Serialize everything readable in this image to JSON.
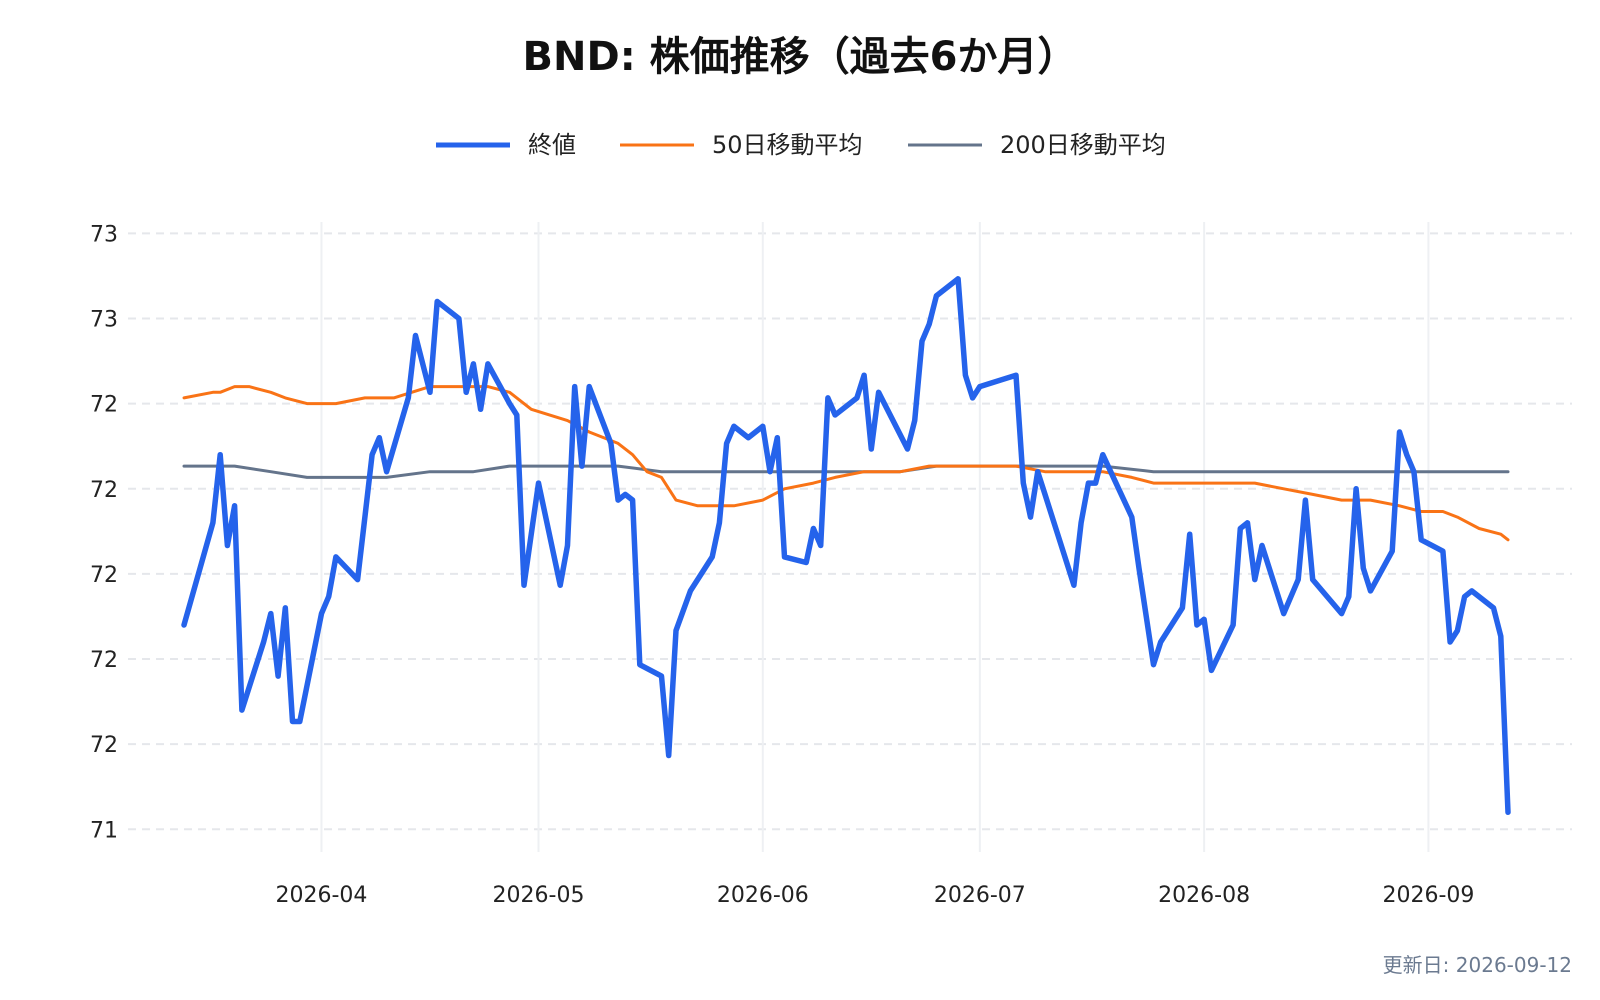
{
  "chart_data": {
    "type": "line",
    "title": "BND: 株価推移（過去6か月）",
    "xlabel": "",
    "ylabel": "",
    "legend_position": "top-center",
    "grid": true,
    "x_tick_labels": [
      "2026-04",
      "2026-05",
      "2026-06",
      "2026-07",
      "2026-08",
      "2026-09"
    ],
    "x_tick_dates": [
      "2026-04-01",
      "2026-05-01",
      "2026-06-01",
      "2026-07-01",
      "2026-08-01",
      "2026-09-01"
    ],
    "y_tick_labels": [
      "73",
      "73",
      "72",
      "72",
      "72",
      "72",
      "72",
      "71"
    ],
    "y_tick_values": [
      72.9,
      72.75,
      72.6,
      72.45,
      72.3,
      72.15,
      72.0,
      71.85
    ],
    "xlim": [
      "2026-03-13",
      "2026-09-12"
    ],
    "ylim": [
      71.81,
      72.92
    ],
    "series": [
      {
        "name": "終値",
        "color": "#2563eb",
        "points": [
          [
            "2026-03-13",
            72.21
          ],
          [
            "2026-03-17",
            72.39
          ],
          [
            "2026-03-18",
            72.51
          ],
          [
            "2026-03-19",
            72.35
          ],
          [
            "2026-03-20",
            72.42
          ],
          [
            "2026-03-21",
            72.06
          ],
          [
            "2026-03-24",
            72.18
          ],
          [
            "2026-03-25",
            72.23
          ],
          [
            "2026-03-26",
            72.12
          ],
          [
            "2026-03-27",
            72.24
          ],
          [
            "2026-03-28",
            72.04
          ],
          [
            "2026-03-29",
            72.04
          ],
          [
            "2026-04-01",
            72.23
          ],
          [
            "2026-04-02",
            72.26
          ],
          [
            "2026-04-03",
            72.33
          ],
          [
            "2026-04-06",
            72.29
          ],
          [
            "2026-04-07",
            72.4
          ],
          [
            "2026-04-08",
            72.51
          ],
          [
            "2026-04-09",
            72.54
          ],
          [
            "2026-04-10",
            72.48
          ],
          [
            "2026-04-13",
            72.61
          ],
          [
            "2026-04-14",
            72.72
          ],
          [
            "2026-04-16",
            72.62
          ],
          [
            "2026-04-17",
            72.78
          ],
          [
            "2026-04-20",
            72.75
          ],
          [
            "2026-04-21",
            72.62
          ],
          [
            "2026-04-22",
            72.67
          ],
          [
            "2026-04-23",
            72.59
          ],
          [
            "2026-04-24",
            72.67
          ],
          [
            "2026-04-27",
            72.6
          ],
          [
            "2026-04-28",
            72.58
          ],
          [
            "2026-04-29",
            72.28
          ],
          [
            "2026-05-01",
            72.46
          ],
          [
            "2026-05-04",
            72.28
          ],
          [
            "2026-05-05",
            72.35
          ],
          [
            "2026-05-06",
            72.63
          ],
          [
            "2026-05-07",
            72.49
          ],
          [
            "2026-05-08",
            72.63
          ],
          [
            "2026-05-11",
            72.53
          ],
          [
            "2026-05-12",
            72.43
          ],
          [
            "2026-05-13",
            72.44
          ],
          [
            "2026-05-14",
            72.43
          ],
          [
            "2026-05-15",
            72.14
          ],
          [
            "2026-05-18",
            72.12
          ],
          [
            "2026-05-19",
            71.98
          ],
          [
            "2026-05-20",
            72.2
          ],
          [
            "2026-05-22",
            72.27
          ],
          [
            "2026-05-25",
            72.33
          ],
          [
            "2026-05-26",
            72.39
          ],
          [
            "2026-05-27",
            72.53
          ],
          [
            "2026-05-28",
            72.56
          ],
          [
            "2026-05-30",
            72.54
          ],
          [
            "2026-06-01",
            72.56
          ],
          [
            "2026-06-02",
            72.48
          ],
          [
            "2026-06-03",
            72.54
          ],
          [
            "2026-06-04",
            72.33
          ],
          [
            "2026-06-07",
            72.32
          ],
          [
            "2026-06-08",
            72.38
          ],
          [
            "2026-06-09",
            72.35
          ],
          [
            "2026-06-10",
            72.61
          ],
          [
            "2026-06-11",
            72.58
          ],
          [
            "2026-06-14",
            72.61
          ],
          [
            "2026-06-15",
            72.65
          ],
          [
            "2026-06-16",
            72.52
          ],
          [
            "2026-06-17",
            72.62
          ],
          [
            "2026-06-21",
            72.52
          ],
          [
            "2026-06-22",
            72.57
          ],
          [
            "2026-06-23",
            72.71
          ],
          [
            "2026-06-24",
            72.74
          ],
          [
            "2026-06-25",
            72.79
          ],
          [
            "2026-06-28",
            72.82
          ],
          [
            "2026-06-29",
            72.65
          ],
          [
            "2026-06-30",
            72.61
          ],
          [
            "2026-07-01",
            72.63
          ],
          [
            "2026-07-06",
            72.65
          ],
          [
            "2026-07-07",
            72.46
          ],
          [
            "2026-07-08",
            72.4
          ],
          [
            "2026-07-09",
            72.48
          ],
          [
            "2026-07-10",
            72.44
          ],
          [
            "2026-07-14",
            72.28
          ],
          [
            "2026-07-15",
            72.39
          ],
          [
            "2026-07-16",
            72.46
          ],
          [
            "2026-07-17",
            72.46
          ],
          [
            "2026-07-18",
            72.51
          ],
          [
            "2026-07-22",
            72.4
          ],
          [
            "2026-07-23",
            72.31
          ],
          [
            "2026-07-25",
            72.14
          ],
          [
            "2026-07-26",
            72.18
          ],
          [
            "2026-07-29",
            72.24
          ],
          [
            "2026-07-30",
            72.37
          ],
          [
            "2026-07-31",
            72.21
          ],
          [
            "2026-08-01",
            72.22
          ],
          [
            "2026-08-02",
            72.13
          ],
          [
            "2026-08-05",
            72.21
          ],
          [
            "2026-08-06",
            72.38
          ],
          [
            "2026-08-07",
            72.39
          ],
          [
            "2026-08-08",
            72.29
          ],
          [
            "2026-08-09",
            72.35
          ],
          [
            "2026-08-12",
            72.23
          ],
          [
            "2026-08-14",
            72.29
          ],
          [
            "2026-08-15",
            72.43
          ],
          [
            "2026-08-16",
            72.29
          ],
          [
            "2026-08-20",
            72.23
          ],
          [
            "2026-08-21",
            72.26
          ],
          [
            "2026-08-22",
            72.45
          ],
          [
            "2026-08-23",
            72.31
          ],
          [
            "2026-08-24",
            72.27
          ],
          [
            "2026-08-27",
            72.34
          ],
          [
            "2026-08-28",
            72.55
          ],
          [
            "2026-08-29",
            72.51
          ],
          [
            "2026-08-30",
            72.48
          ],
          [
            "2026-08-31",
            72.36
          ],
          [
            "2026-09-03",
            72.34
          ],
          [
            "2026-09-04",
            72.18
          ],
          [
            "2026-09-05",
            72.2
          ],
          [
            "2026-09-06",
            72.26
          ],
          [
            "2026-09-07",
            72.27
          ],
          [
            "2026-09-10",
            72.24
          ],
          [
            "2026-09-11",
            72.19
          ],
          [
            "2026-09-12",
            71.88
          ]
        ]
      },
      {
        "name": "50日移動平均",
        "color": "#f97316",
        "points": [
          [
            "2026-03-13",
            72.61
          ],
          [
            "2026-03-17",
            72.62
          ],
          [
            "2026-03-18",
            72.62
          ],
          [
            "2026-03-20",
            72.63
          ],
          [
            "2026-03-22",
            72.63
          ],
          [
            "2026-03-25",
            72.62
          ],
          [
            "2026-03-27",
            72.61
          ],
          [
            "2026-03-30",
            72.6
          ],
          [
            "2026-04-01",
            72.6
          ],
          [
            "2026-04-03",
            72.6
          ],
          [
            "2026-04-07",
            72.61
          ],
          [
            "2026-04-11",
            72.61
          ],
          [
            "2026-04-16",
            72.63
          ],
          [
            "2026-04-20",
            72.63
          ],
          [
            "2026-04-24",
            72.63
          ],
          [
            "2026-04-27",
            72.62
          ],
          [
            "2026-04-30",
            72.59
          ],
          [
            "2026-05-05",
            72.57
          ],
          [
            "2026-05-08",
            72.55
          ],
          [
            "2026-05-12",
            72.53
          ],
          [
            "2026-05-14",
            72.51
          ],
          [
            "2026-05-16",
            72.48
          ],
          [
            "2026-05-18",
            72.47
          ],
          [
            "2026-05-20",
            72.43
          ],
          [
            "2026-05-23",
            72.42
          ],
          [
            "2026-05-28",
            72.42
          ],
          [
            "2026-06-01",
            72.43
          ],
          [
            "2026-06-04",
            72.45
          ],
          [
            "2026-06-08",
            72.46
          ],
          [
            "2026-06-11",
            72.47
          ],
          [
            "2026-06-15",
            72.48
          ],
          [
            "2026-06-20",
            72.48
          ],
          [
            "2026-06-24",
            72.49
          ],
          [
            "2026-06-28",
            72.49
          ],
          [
            "2026-06-30",
            72.49
          ],
          [
            "2026-07-06",
            72.49
          ],
          [
            "2026-07-10",
            72.48
          ],
          [
            "2026-07-14",
            72.48
          ],
          [
            "2026-07-18",
            72.48
          ],
          [
            "2026-07-22",
            72.47
          ],
          [
            "2026-07-25",
            72.46
          ],
          [
            "2026-07-30",
            72.46
          ],
          [
            "2026-08-02",
            72.46
          ],
          [
            "2026-08-05",
            72.46
          ],
          [
            "2026-08-08",
            72.46
          ],
          [
            "2026-08-12",
            72.45
          ],
          [
            "2026-08-16",
            72.44
          ],
          [
            "2026-08-20",
            72.43
          ],
          [
            "2026-08-24",
            72.43
          ],
          [
            "2026-08-28",
            72.42
          ],
          [
            "2026-08-31",
            72.41
          ],
          [
            "2026-09-03",
            72.41
          ],
          [
            "2026-09-05",
            72.4
          ],
          [
            "2026-09-08",
            72.38
          ],
          [
            "2026-09-11",
            72.37
          ],
          [
            "2026-09-12",
            72.36
          ]
        ]
      },
      {
        "name": "200日移動平均",
        "color": "#64748b",
        "points": [
          [
            "2026-03-13",
            72.49
          ],
          [
            "2026-03-18",
            72.49
          ],
          [
            "2026-03-20",
            72.49
          ],
          [
            "2026-03-25",
            72.48
          ],
          [
            "2026-03-30",
            72.47
          ],
          [
            "2026-04-05",
            72.47
          ],
          [
            "2026-04-10",
            72.47
          ],
          [
            "2026-04-16",
            72.48
          ],
          [
            "2026-04-22",
            72.48
          ],
          [
            "2026-04-27",
            72.49
          ],
          [
            "2026-05-05",
            72.49
          ],
          [
            "2026-05-12",
            72.49
          ],
          [
            "2026-05-18",
            72.48
          ],
          [
            "2026-05-21",
            72.48
          ],
          [
            "2026-05-28",
            72.48
          ],
          [
            "2026-06-04",
            72.48
          ],
          [
            "2026-06-11",
            72.48
          ],
          [
            "2026-06-20",
            72.48
          ],
          [
            "2026-06-25",
            72.49
          ],
          [
            "2026-07-01",
            72.49
          ],
          [
            "2026-07-10",
            72.49
          ],
          [
            "2026-07-18",
            72.49
          ],
          [
            "2026-07-25",
            72.48
          ],
          [
            "2026-08-01",
            72.48
          ],
          [
            "2026-08-10",
            72.48
          ],
          [
            "2026-08-18",
            72.48
          ],
          [
            "2026-08-25",
            72.48
          ],
          [
            "2026-08-31",
            72.48
          ],
          [
            "2026-09-05",
            72.48
          ],
          [
            "2026-09-12",
            72.48
          ]
        ]
      }
    ]
  },
  "footer": {
    "updated": "更新日: 2026-09-12"
  }
}
